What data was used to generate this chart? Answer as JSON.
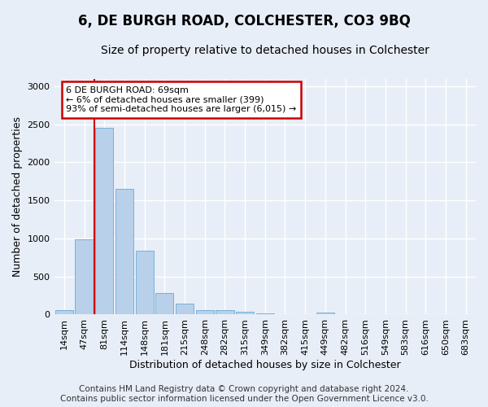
{
  "title": "6, DE BURGH ROAD, COLCHESTER, CO3 9BQ",
  "subtitle": "Size of property relative to detached houses in Colchester",
  "xlabel": "Distribution of detached houses by size in Colchester",
  "ylabel": "Number of detached properties",
  "categories": [
    "14sqm",
    "47sqm",
    "81sqm",
    "114sqm",
    "148sqm",
    "181sqm",
    "215sqm",
    "248sqm",
    "282sqm",
    "315sqm",
    "349sqm",
    "382sqm",
    "415sqm",
    "449sqm",
    "482sqm",
    "516sqm",
    "549sqm",
    "583sqm",
    "616sqm",
    "650sqm",
    "683sqm"
  ],
  "values": [
    60,
    990,
    2450,
    1650,
    840,
    285,
    140,
    55,
    55,
    35,
    20,
    0,
    0,
    30,
    0,
    0,
    0,
    0,
    0,
    0,
    0
  ],
  "bar_color": "#b8d0ea",
  "bar_edgecolor": "#6aaad4",
  "vline_x": 1.5,
  "vline_color": "#cc0000",
  "annotation_text": "6 DE BURGH ROAD: 69sqm\n← 6% of detached houses are smaller (399)\n93% of semi-detached houses are larger (6,015) →",
  "annotation_box_edgecolor": "#cc0000",
  "annotation_box_facecolor": "#ffffff",
  "ylim": [
    0,
    3100
  ],
  "yticks": [
    0,
    500,
    1000,
    1500,
    2000,
    2500,
    3000
  ],
  "footer_line1": "Contains HM Land Registry data © Crown copyright and database right 2024.",
  "footer_line2": "Contains public sector information licensed under the Open Government Licence v3.0.",
  "title_fontsize": 12,
  "subtitle_fontsize": 10,
  "ylabel_fontsize": 9,
  "xlabel_fontsize": 9,
  "tick_fontsize": 8,
  "annotation_fontsize": 8,
  "footer_fontsize": 7.5,
  "background_color": "#e8eef7"
}
